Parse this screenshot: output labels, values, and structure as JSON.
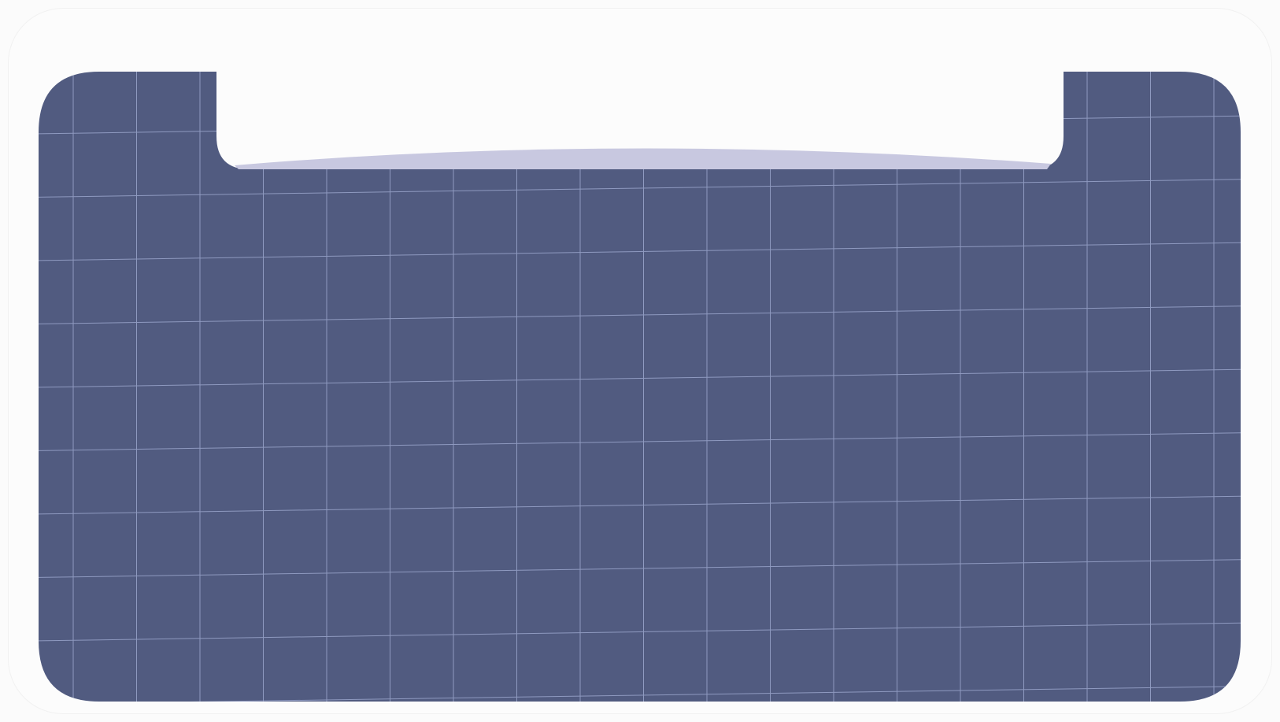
{
  "colors": {
    "page_background": "#fbfbfb",
    "panel_fill": "#515b80",
    "grid_line": "#8f9ac0",
    "notch_fill": "#fdfdfd",
    "notch_shadow": "#c8c8e0"
  },
  "grid": {
    "columns": 19,
    "rows": 10,
    "skewed": true
  }
}
